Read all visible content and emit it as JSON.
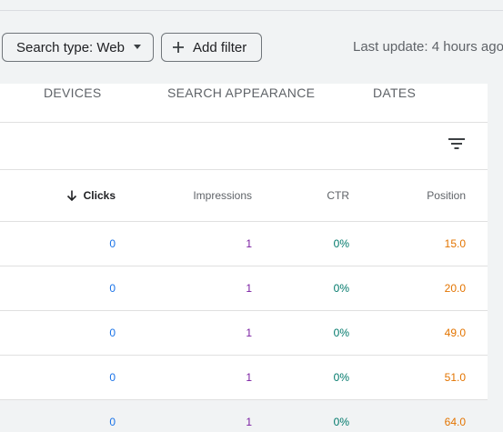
{
  "toolbar": {
    "search_type_label": "Search type: Web",
    "add_filter_label": "Add filter",
    "last_update": "Last update: 4 hours ago"
  },
  "tabs": [
    {
      "label": "DEVICES"
    },
    {
      "label": "SEARCH APPEARANCE"
    },
    {
      "label": "DATES"
    }
  ],
  "table": {
    "columns": {
      "clicks": "Clicks",
      "impressions": "Impressions",
      "ctr": "CTR",
      "position": "Position"
    },
    "sort": {
      "column": "clicks",
      "direction": "descending"
    },
    "rows": [
      {
        "clicks": "0",
        "impressions": "1",
        "ctr": "0%",
        "position": "15.0"
      },
      {
        "clicks": "0",
        "impressions": "1",
        "ctr": "0%",
        "position": "20.0"
      },
      {
        "clicks": "0",
        "impressions": "1",
        "ctr": "0%",
        "position": "49.0"
      },
      {
        "clicks": "0",
        "impressions": "1",
        "ctr": "0%",
        "position": "51.0"
      },
      {
        "clicks": "0",
        "impressions": "1",
        "ctr": "0%",
        "position": "64.0"
      }
    ]
  },
  "icons": {
    "filter": "filter-list-icon",
    "add": "plus-icon",
    "dropdown": "caret-down-icon",
    "sort": "arrow-down-icon"
  },
  "colors": {
    "clicks": "#1a73e8",
    "impressions": "#7b1fa2",
    "ctr": "#00796b",
    "position": "#e37400"
  }
}
